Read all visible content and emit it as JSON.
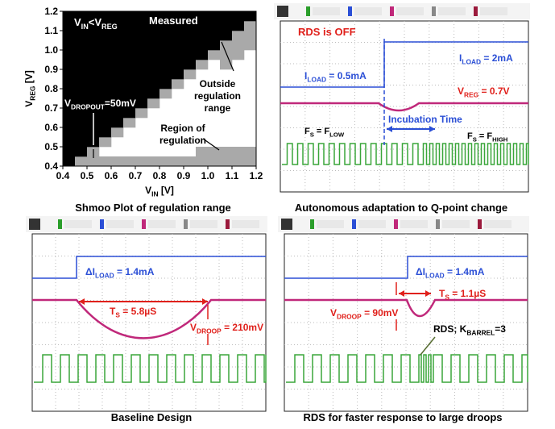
{
  "shmoo": {
    "ylabel": [
      "V",
      "REG",
      " [V]"
    ],
    "xlabel": [
      "V",
      "IN",
      " [V]"
    ],
    "xticks": [
      0.4,
      0.5,
      0.6,
      0.7,
      0.8,
      0.9,
      {
        "value": 1,
        "label": "1.0"
      },
      1.1,
      1.2
    ],
    "yticks": [
      0.4,
      0.5,
      0.6,
      0.7,
      0.8,
      0.9,
      {
        "value": 1,
        "label": "1.0"
      },
      1.1,
      1.2
    ],
    "xlim": [
      0.4,
      1.2
    ],
    "ylim": [
      0.4,
      1.2
    ],
    "vin_lt_vreg": [
      "V",
      "IN",
      "<V",
      "REG"
    ],
    "measured": "Measured",
    "dropout": [
      "V",
      "DROPOUT",
      "=50mV"
    ],
    "outside": [
      "Outside",
      "regulation",
      "range"
    ],
    "region": [
      "Region of",
      "regulation"
    ],
    "caption": "Shmoo Plot of regulation range"
  },
  "scopes": [
    {
      "rds_off": "RDS is OFF",
      "iload_high": [
        "I",
        "LOAD",
        " = 2mA"
      ],
      "iload_low": [
        "I",
        "LOAD",
        " = 0.5mA"
      ],
      "vreg": [
        "V",
        "REG",
        " = 0.7V"
      ],
      "incubation": "Incubation Time",
      "fs_low": [
        "F",
        "S",
        " = F",
        "LOW"
      ],
      "fs_high": [
        "F",
        "S",
        " = F",
        "HIGH"
      ],
      "caption": "Autonomous adaptation to Q-point change"
    },
    {
      "diload": [
        "ΔI",
        "LOAD",
        " = 1.4mA"
      ],
      "ts": [
        "T",
        "S",
        " = 5.8µS"
      ],
      "vdroop": [
        "V",
        "DROOP",
        " = 210mV"
      ],
      "caption": "Baseline Design"
    },
    {
      "diload": [
        "ΔI",
        "LOAD",
        " = 1.4mA"
      ],
      "ts": [
        "T",
        "S",
        " = 1.1µS"
      ],
      "vdroop": [
        "V",
        "DROOP",
        " = 90mV"
      ],
      "rds": [
        "RDS; K",
        "BARREL",
        "=3"
      ],
      "caption": "RDS for faster response to large droops"
    }
  ]
}
